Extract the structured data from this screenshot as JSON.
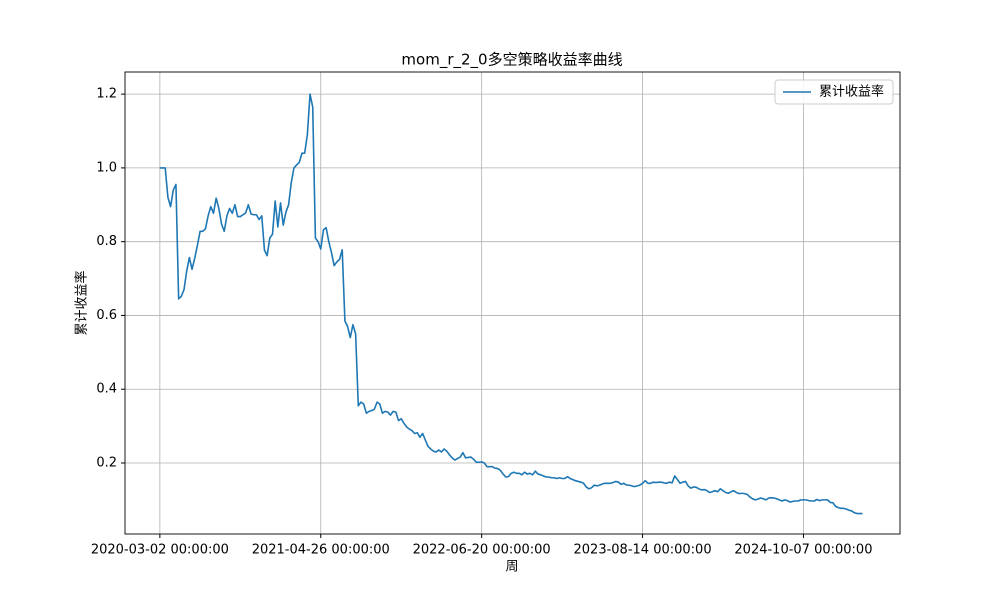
{
  "chart_data": {
    "type": "line",
    "title": "mom_r_2_0多空策略收益率曲线",
    "x_label": "周",
    "y_label": "累计收益率",
    "x": [
      "2020-03-02",
      "2020-03-09",
      "2020-03-16",
      "2020-03-23",
      "2020-03-30",
      "2020-04-06",
      "2020-04-13",
      "2020-04-20",
      "2020-04-27",
      "2020-05-04",
      "2020-05-11",
      "2020-05-18",
      "2020-05-25",
      "2020-06-01",
      "2020-06-08",
      "2020-06-15",
      "2020-06-22",
      "2020-06-29",
      "2020-07-06",
      "2020-07-13",
      "2020-07-20",
      "2020-07-27",
      "2020-08-03",
      "2020-08-10",
      "2020-08-17",
      "2020-08-24",
      "2020-08-31",
      "2020-09-07",
      "2020-09-14",
      "2020-09-21",
      "2020-09-28",
      "2020-10-05",
      "2020-10-12",
      "2020-10-19",
      "2020-10-26",
      "2020-11-02",
      "2020-11-09",
      "2020-11-16",
      "2020-11-23",
      "2020-11-30",
      "2020-12-07",
      "2020-12-14",
      "2020-12-21",
      "2020-12-28",
      "2021-01-04",
      "2021-01-11",
      "2021-01-18",
      "2021-01-25",
      "2021-02-01",
      "2021-02-08",
      "2021-02-15",
      "2021-02-22",
      "2021-03-01",
      "2021-03-08",
      "2021-03-15",
      "2021-03-22",
      "2021-03-29",
      "2021-04-05",
      "2021-04-12",
      "2021-04-19",
      "2021-04-26",
      "2021-05-03",
      "2021-05-10",
      "2021-05-17",
      "2021-05-24",
      "2021-05-31",
      "2021-06-07",
      "2021-06-14",
      "2021-06-21",
      "2021-06-28",
      "2021-07-05",
      "2021-07-12",
      "2021-07-19",
      "2021-07-26",
      "2021-08-02",
      "2021-08-09",
      "2021-08-16",
      "2021-08-23",
      "2021-08-30",
      "2021-09-06",
      "2021-09-13",
      "2021-09-20",
      "2021-09-27",
      "2021-10-04",
      "2021-10-11",
      "2021-10-18",
      "2021-10-25",
      "2021-11-01",
      "2021-11-08",
      "2021-11-15",
      "2021-11-22",
      "2021-11-29",
      "2021-12-06",
      "2021-12-13",
      "2021-12-20",
      "2021-12-27",
      "2022-01-03",
      "2022-01-10",
      "2022-01-17",
      "2022-01-24",
      "2022-01-31",
      "2022-02-07",
      "2022-02-14",
      "2022-02-21",
      "2022-02-28",
      "2022-03-07",
      "2022-03-14",
      "2022-03-21",
      "2022-03-28",
      "2022-04-04",
      "2022-04-11",
      "2022-04-18",
      "2022-04-25",
      "2022-05-02",
      "2022-05-09",
      "2022-05-16",
      "2022-05-23",
      "2022-05-30",
      "2022-06-06",
      "2022-06-13",
      "2022-06-20",
      "2022-06-27",
      "2022-07-04",
      "2022-07-11",
      "2022-07-18",
      "2022-07-25",
      "2022-08-01",
      "2022-08-08",
      "2022-08-15",
      "2022-08-22",
      "2022-08-29",
      "2022-09-05",
      "2022-09-12",
      "2022-09-19",
      "2022-09-26",
      "2022-10-03",
      "2022-10-10",
      "2022-10-17",
      "2022-10-24",
      "2022-10-31",
      "2022-11-07",
      "2022-11-14",
      "2022-11-21",
      "2022-11-28",
      "2022-12-05",
      "2022-12-12",
      "2022-12-19",
      "2022-12-26",
      "2023-01-02",
      "2023-01-09",
      "2023-01-16",
      "2023-01-23",
      "2023-01-30",
      "2023-02-06",
      "2023-02-13",
      "2023-02-20",
      "2023-02-27",
      "2023-03-06",
      "2023-03-13",
      "2023-03-20",
      "2023-03-27",
      "2023-04-03",
      "2023-04-10",
      "2023-04-17",
      "2023-04-24",
      "2023-05-01",
      "2023-05-08",
      "2023-05-15",
      "2023-05-22",
      "2023-05-29",
      "2023-06-05",
      "2023-06-12",
      "2023-06-19",
      "2023-06-26",
      "2023-07-03",
      "2023-07-10",
      "2023-07-17",
      "2023-07-24",
      "2023-07-31",
      "2023-08-07",
      "2023-08-14",
      "2023-08-21",
      "2023-08-28",
      "2023-09-04",
      "2023-09-11",
      "2023-09-18",
      "2023-09-25",
      "2023-10-02",
      "2023-10-09",
      "2023-10-16",
      "2023-10-23",
      "2023-10-30",
      "2023-11-06",
      "2023-11-13",
      "2023-11-20",
      "2023-11-27",
      "2023-12-04",
      "2023-12-11",
      "2023-12-18",
      "2023-12-25",
      "2024-01-01",
      "2024-01-08",
      "2024-01-15",
      "2024-01-22",
      "2024-01-29",
      "2024-02-05",
      "2024-02-12",
      "2024-02-19",
      "2024-02-26",
      "2024-03-04",
      "2024-03-11",
      "2024-03-18",
      "2024-03-25",
      "2024-04-01",
      "2024-04-08",
      "2024-04-15",
      "2024-04-22",
      "2024-04-29",
      "2024-05-06",
      "2024-05-13",
      "2024-05-20",
      "2024-05-27",
      "2024-06-03",
      "2024-06-10",
      "2024-06-17",
      "2024-06-24",
      "2024-07-01",
      "2024-07-08",
      "2024-07-15",
      "2024-07-22",
      "2024-07-29",
      "2024-08-05",
      "2024-08-12",
      "2024-08-19",
      "2024-08-26",
      "2024-09-02",
      "2024-09-09",
      "2024-09-16",
      "2024-09-23",
      "2024-09-30",
      "2024-10-07",
      "2024-10-14",
      "2024-10-21",
      "2024-10-28",
      "2024-11-04",
      "2024-11-11",
      "2024-11-18",
      "2024-11-25",
      "2024-12-02",
      "2024-12-09",
      "2024-12-16",
      "2024-12-23",
      "2024-12-30",
      "2025-01-06",
      "2025-01-13",
      "2025-01-20",
      "2025-01-27",
      "2025-02-03",
      "2025-02-10",
      "2025-02-17",
      "2025-02-24",
      "2025-03-03",
      "2025-03-10"
    ],
    "series": [
      {
        "name": "累计收益率",
        "color": "#1f77b4",
        "values": [
          1.0,
          1.0,
          1.0,
          0.92,
          0.895,
          0.94,
          0.955,
          0.645,
          0.652,
          0.67,
          0.72,
          0.757,
          0.725,
          0.755,
          0.79,
          0.828,
          0.828,
          0.835,
          0.87,
          0.895,
          0.877,
          0.918,
          0.89,
          0.848,
          0.828,
          0.87,
          0.89,
          0.877,
          0.9,
          0.868,
          0.868,
          0.873,
          0.878,
          0.9,
          0.875,
          0.873,
          0.873,
          0.86,
          0.87,
          0.777,
          0.762,
          0.81,
          0.82,
          0.91,
          0.84,
          0.905,
          0.845,
          0.88,
          0.9,
          0.96,
          1.0,
          1.008,
          1.015,
          1.04,
          1.04,
          1.09,
          1.2,
          1.165,
          0.81,
          0.8,
          0.78,
          0.832,
          0.838,
          0.8,
          0.77,
          0.735,
          0.745,
          0.752,
          0.778,
          0.585,
          0.57,
          0.54,
          0.575,
          0.55,
          0.355,
          0.365,
          0.36,
          0.335,
          0.34,
          0.342,
          0.346,
          0.365,
          0.36,
          0.335,
          0.34,
          0.338,
          0.33,
          0.34,
          0.338,
          0.315,
          0.32,
          0.308,
          0.298,
          0.292,
          0.288,
          0.28,
          0.282,
          0.27,
          0.28,
          0.262,
          0.245,
          0.238,
          0.232,
          0.23,
          0.235,
          0.23,
          0.238,
          0.232,
          0.222,
          0.214,
          0.208,
          0.212,
          0.216,
          0.228,
          0.214,
          0.215,
          0.216,
          0.21,
          0.202,
          0.202,
          0.203,
          0.2,
          0.19,
          0.19,
          0.19,
          0.186,
          0.185,
          0.18,
          0.17,
          0.162,
          0.163,
          0.172,
          0.175,
          0.172,
          0.172,
          0.168,
          0.175,
          0.17,
          0.172,
          0.168,
          0.178,
          0.17,
          0.168,
          0.165,
          0.162,
          0.162,
          0.16,
          0.16,
          0.158,
          0.16,
          0.158,
          0.158,
          0.163,
          0.158,
          0.155,
          0.152,
          0.15,
          0.148,
          0.145,
          0.135,
          0.13,
          0.133,
          0.14,
          0.138,
          0.14,
          0.143,
          0.145,
          0.145,
          0.145,
          0.147,
          0.15,
          0.148,
          0.142,
          0.145,
          0.14,
          0.14,
          0.138,
          0.136,
          0.138,
          0.14,
          0.145,
          0.152,
          0.145,
          0.145,
          0.148,
          0.147,
          0.148,
          0.148,
          0.146,
          0.145,
          0.148,
          0.146,
          0.165,
          0.155,
          0.145,
          0.148,
          0.15,
          0.138,
          0.132,
          0.135,
          0.134,
          0.13,
          0.127,
          0.128,
          0.125,
          0.12,
          0.122,
          0.125,
          0.122,
          0.13,
          0.125,
          0.12,
          0.118,
          0.122,
          0.125,
          0.12,
          0.117,
          0.118,
          0.117,
          0.115,
          0.108,
          0.103,
          0.1,
          0.102,
          0.105,
          0.103,
          0.1,
          0.105,
          0.106,
          0.105,
          0.103,
          0.1,
          0.097,
          0.1,
          0.098,
          0.094,
          0.096,
          0.097,
          0.097,
          0.1,
          0.1,
          0.1,
          0.098,
          0.097,
          0.097,
          0.101,
          0.098,
          0.1,
          0.1,
          0.1,
          0.093,
          0.092,
          0.082,
          0.079,
          0.077,
          0.077,
          0.075,
          0.072,
          0.07,
          0.065,
          0.063,
          0.063,
          0.063
        ]
      }
    ],
    "xlim": [
      "2019-12-02",
      "2025-06-16"
    ],
    "ylim": [
      0.0075,
      1.26
    ],
    "xticks": [
      {
        "value": "2020-03-02",
        "label": "2020-03-02 00:00:00"
      },
      {
        "value": "2021-04-26",
        "label": "2021-04-26 00:00:00"
      },
      {
        "value": "2022-06-20",
        "label": "2022-06-20 00:00:00"
      },
      {
        "value": "2023-08-14",
        "label": "2023-08-14 00:00:00"
      },
      {
        "value": "2024-10-07",
        "label": "2024-10-07 00:00:00"
      }
    ],
    "yticks": [
      0.2,
      0.4,
      0.6,
      0.8,
      {
        "value": 1,
        "label": "1.0"
      },
      1.2
    ],
    "grid": true,
    "legend": "upper-right"
  }
}
